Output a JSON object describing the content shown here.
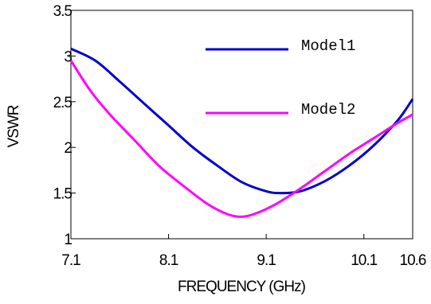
{
  "chart_data": {
    "type": "line",
    "xlabel": "FREQUENCY (GHz)",
    "ylabel": "VSWR",
    "xlim": [
      7.1,
      10.6
    ],
    "ylim": [
      1,
      3.5
    ],
    "xticks": [
      7.1,
      8.1,
      9.1,
      10.1,
      10.6
    ],
    "xtick_labels": [
      "7.1",
      "8.1",
      "9.1",
      "10.1",
      "10.6"
    ],
    "yticks": [
      1,
      1.5,
      2,
      2.5,
      3,
      3.5
    ],
    "ytick_labels": [
      "1",
      "1.5",
      "2",
      "2.5",
      "3",
      "3.5"
    ],
    "grid": false,
    "legend_position": "inside-top-right",
    "series": [
      {
        "name": "Model1",
        "color": "#0000cc",
        "x": [
          7.1,
          7.35,
          7.6,
          7.85,
          8.1,
          8.35,
          8.6,
          8.85,
          9.1,
          9.25,
          9.45,
          9.7,
          9.95,
          10.2,
          10.45,
          10.6
        ],
        "y": [
          3.08,
          2.95,
          2.72,
          2.48,
          2.24,
          2.0,
          1.8,
          1.62,
          1.52,
          1.5,
          1.52,
          1.63,
          1.8,
          2.02,
          2.3,
          2.53
        ]
      },
      {
        "name": "Model2",
        "color": "#ff00ff",
        "x": [
          7.1,
          7.3,
          7.5,
          7.75,
          8.0,
          8.25,
          8.5,
          8.7,
          8.85,
          9.0,
          9.2,
          9.45,
          9.7,
          9.95,
          10.2,
          10.45,
          10.6
        ],
        "y": [
          2.95,
          2.62,
          2.36,
          2.08,
          1.8,
          1.58,
          1.38,
          1.27,
          1.24,
          1.28,
          1.38,
          1.55,
          1.74,
          1.93,
          2.1,
          2.27,
          2.36
        ]
      }
    ]
  }
}
